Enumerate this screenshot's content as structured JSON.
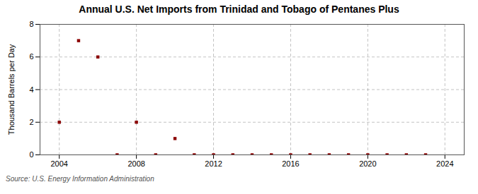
{
  "chart_data": {
    "type": "scatter",
    "title": "Annual U.S. Net Imports from Trinidad and Tobago of Pentanes Plus",
    "ylabel": "Thousand Barrels per Day",
    "source": "Source: U.S. Energy Information Administration",
    "x": [
      2004,
      2005,
      2006,
      2007,
      2008,
      2009,
      2010,
      2011,
      2012,
      2013,
      2014,
      2015,
      2016,
      2017,
      2018,
      2019,
      2020,
      2021,
      2022,
      2023
    ],
    "values": [
      2.0,
      7.0,
      6.0,
      0.0,
      2.0,
      0.0,
      1.0,
      0.0,
      0.0,
      0.0,
      0.0,
      0.0,
      0.0,
      0.0,
      0.0,
      0.0,
      0.0,
      0.0,
      0.0,
      0.0
    ],
    "color": "#8b0000",
    "marker": "square",
    "xlim": [
      2003.0,
      2025.0
    ],
    "ylim": [
      0,
      8
    ],
    "xticks": [
      2004,
      2008,
      2012,
      2016,
      2020,
      2024
    ],
    "yticks": [
      0,
      2,
      4,
      6,
      8
    ],
    "grid": true
  }
}
